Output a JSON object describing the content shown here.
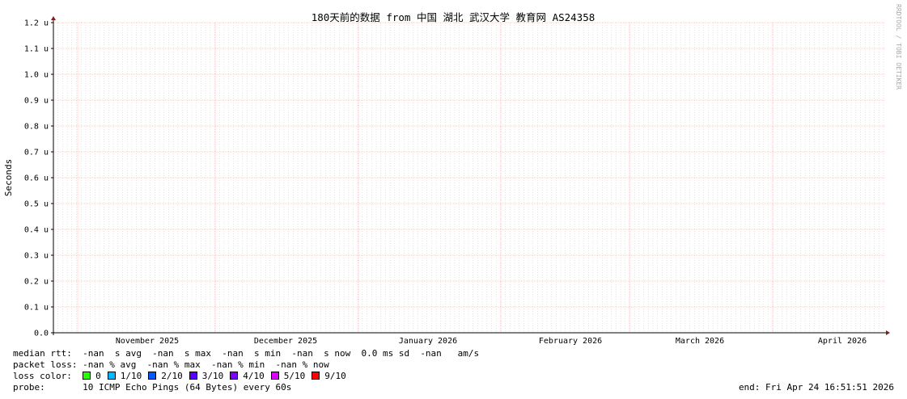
{
  "chart_data": {
    "type": "line",
    "title": "180天前的数据 from  中国 湖北 武汉大学 教育网 AS24358",
    "ylabel": "Seconds",
    "watermark": "RRDTOOL / TOBI OETIKER",
    "yticks": [
      "0.0",
      "0.1 u",
      "0.2 u",
      "0.3 u",
      "0.4 u",
      "0.5 u",
      "0.6 u",
      "0.7 u",
      "0.8 u",
      "0.9 u",
      "1.0 u",
      "1.1 u",
      "1.2 u"
    ],
    "ylim": [
      0,
      1.2e-06
    ],
    "xlabels": [
      "November 2025",
      "December 2025",
      "January 2026",
      "February 2026",
      "March 2026",
      "April 2026"
    ],
    "grid": true,
    "series": [],
    "colors": {
      "major_grid": "#f4a0a0",
      "minor_grid": "#c8c8c8",
      "axis": "#000000",
      "arrow": "#7f1f1f"
    }
  },
  "legend": {
    "median_rtt": "median rtt:  -nan  s avg  -nan  s max  -nan  s min  -nan  s now  0.0 ms sd  -nan   am/s",
    "packet_loss": "packet loss: -nan % avg  -nan % max  -nan % min  -nan % now",
    "loss_color_label": "loss color:",
    "loss_colors": [
      {
        "label": "0",
        "color": "#26ff00"
      },
      {
        "label": "1/10",
        "color": "#00b8ff"
      },
      {
        "label": "2/10",
        "color": "#0059ff"
      },
      {
        "label": "3/10",
        "color": "#5e00ff"
      },
      {
        "label": "4/10",
        "color": "#7e00ff"
      },
      {
        "label": "5/10",
        "color": "#dd00ff"
      },
      {
        "label": "9/10",
        "color": "#ff0000"
      }
    ],
    "probe": "probe:       10 ICMP Echo Pings (64 Bytes) every 60s",
    "end": "end: Fri Apr 24 16:51:51 2026"
  }
}
